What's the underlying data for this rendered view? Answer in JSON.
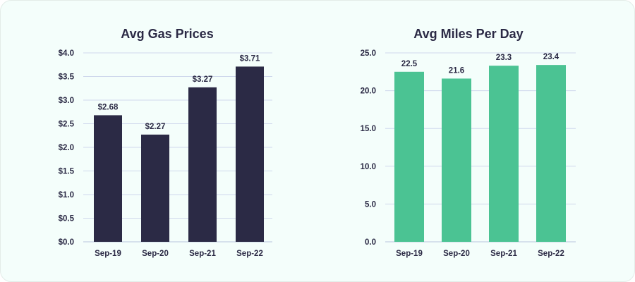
{
  "colors": {
    "background": "#f4fefb",
    "gas_bar": "#2b2a45",
    "miles_bar": "#4bc393",
    "gridline": "#cfd8ec",
    "text": "#2b2a45"
  },
  "chart_data": [
    {
      "type": "bar",
      "title": "Avg Gas Prices",
      "xlabel": "",
      "ylabel": "",
      "categories": [
        "Sep-19",
        "Sep-20",
        "Sep-21",
        "Sep-22"
      ],
      "values": [
        2.68,
        2.27,
        3.27,
        3.71
      ],
      "value_labels": [
        "$2.68",
        "$2.27",
        "$3.27",
        "$3.71"
      ],
      "ylim": [
        0,
        4.0
      ],
      "yticks": [
        0,
        0.5,
        1.0,
        1.5,
        2.0,
        2.5,
        3.0,
        3.5,
        4.0
      ],
      "ytick_labels": [
        "$0.0",
        "$0.5",
        "$1.0",
        "$1.5",
        "$2.0",
        "$2.5",
        "$3.0",
        "$3.5",
        "$4.0"
      ],
      "grid": true,
      "legend": "none",
      "color": "#2b2a45"
    },
    {
      "type": "bar",
      "title": "Avg Miles Per Day",
      "xlabel": "",
      "ylabel": "",
      "categories": [
        "Sep-19",
        "Sep-20",
        "Sep-21",
        "Sep-22"
      ],
      "values": [
        22.5,
        21.6,
        23.3,
        23.4
      ],
      "value_labels": [
        "22.5",
        "21.6",
        "23.3",
        "23.4"
      ],
      "ylim": [
        0,
        25.0
      ],
      "yticks": [
        0,
        5.0,
        10.0,
        15.0,
        20.0,
        25.0
      ],
      "ytick_labels": [
        "0.0",
        "5.0",
        "10.0",
        "15.0",
        "20.0",
        "25.0"
      ],
      "grid": true,
      "legend": "none",
      "color": "#4bc393"
    }
  ]
}
